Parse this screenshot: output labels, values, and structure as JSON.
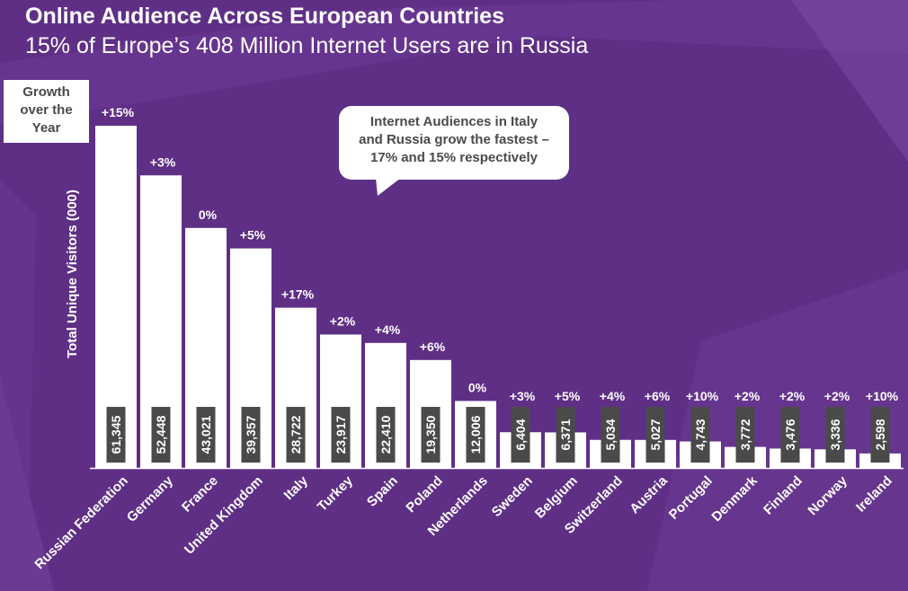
{
  "header": {
    "title": "Online Audience Across European Countries",
    "subtitle": "15% of Europe’s 408 Million Internet Users are in Russia"
  },
  "legend": {
    "lines": [
      "Growth",
      "over the",
      "Year"
    ]
  },
  "callout": {
    "lines": [
      "Internet Audiences in Italy",
      "and Russia grow the fastest –",
      "17% and 15% respectively"
    ]
  },
  "colors": {
    "background": "#5f2f86",
    "bar": "#ffffff",
    "value_label_bg": "#4a4a4a",
    "text": "#ffffff"
  },
  "chart_data": {
    "type": "bar",
    "title": "Online Audience Across European Countries",
    "subtitle": "15% of Europe’s 408 Million Internet Users are in Russia",
    "xlabel": "",
    "ylabel": "Total Unique Visitors (000)",
    "ylim": [
      0,
      65000
    ],
    "grid": false,
    "categories": [
      "Russian Federation",
      "Germany",
      "France",
      "United Kingdom",
      "Italy",
      "Turkey",
      "Spain",
      "Poland",
      "Netherlands",
      "Sweden",
      "Belgium",
      "Switzerland",
      "Austria",
      "Portugal",
      "Denmark",
      "Finland",
      "Norway",
      "Ireland"
    ],
    "values": [
      61345,
      52448,
      43021,
      39357,
      28722,
      23917,
      22410,
      19350,
      12006,
      6404,
      6371,
      5034,
      5027,
      4743,
      3772,
      3476,
      3336,
      2598
    ],
    "value_labels": [
      "61,345",
      "52,448",
      "43,021",
      "39,357",
      "28,722",
      "23,917",
      "22,410",
      "19,350",
      "12,006",
      "6,404",
      "6,371",
      "5,034",
      "5,027",
      "4,743",
      "3,772",
      "3,476",
      "3,336",
      "2,598"
    ],
    "growth_labels": [
      "+15%",
      "+3%",
      "0%",
      "+5%",
      "+17%",
      "+2%",
      "+4%",
      "+6%",
      "0%",
      "+3%",
      "+5%",
      "+4%",
      "+6%",
      "+10%",
      "+2%",
      "+2%",
      "+2%",
      "+10%"
    ]
  }
}
